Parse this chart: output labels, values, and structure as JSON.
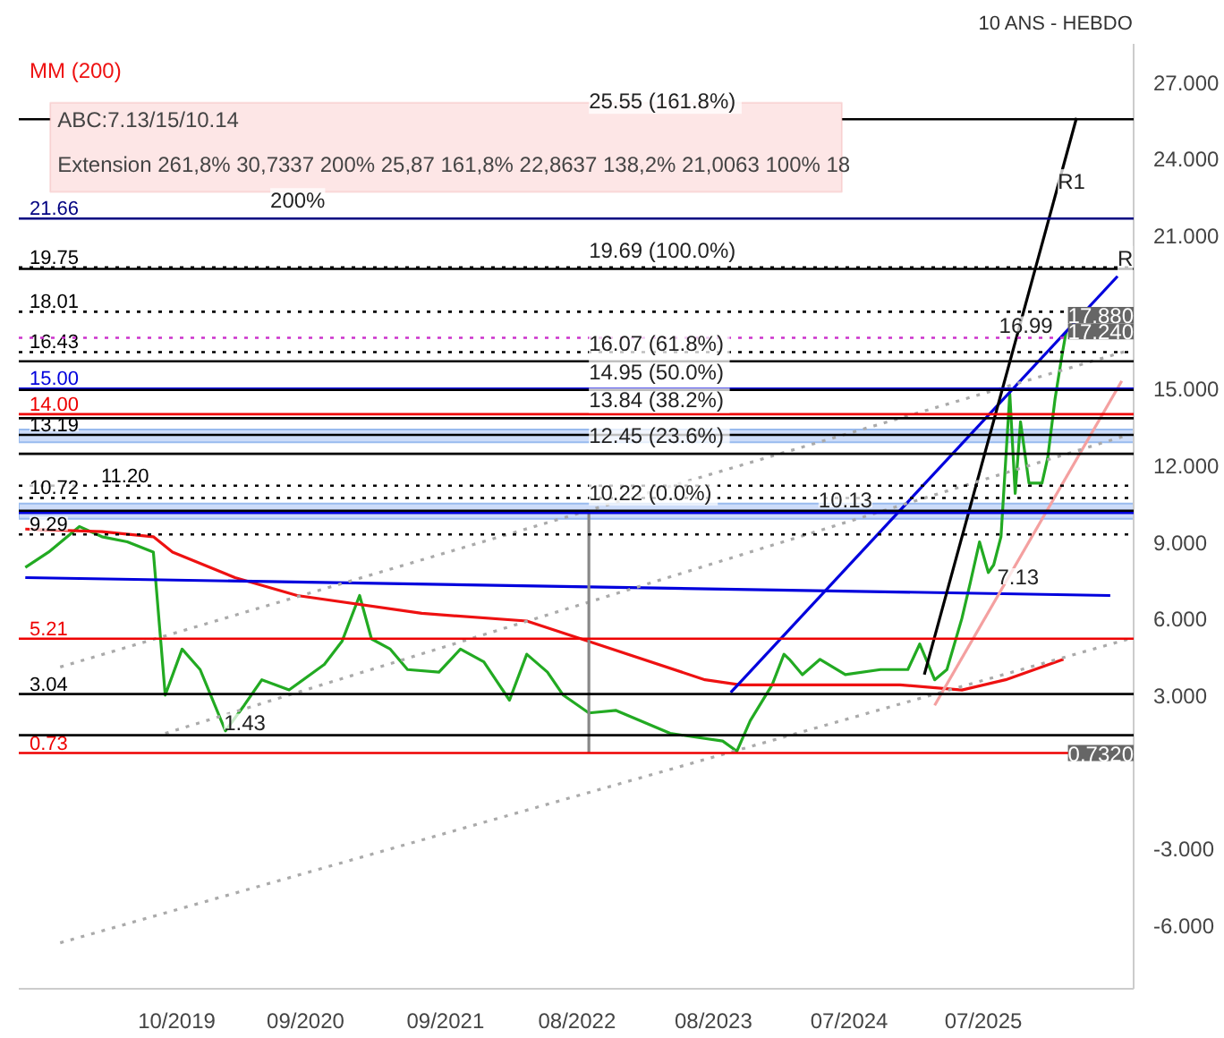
{
  "chart_data": {
    "type": "line",
    "title": "10 ANS - HEBDO",
    "x": [
      "2018-09-01",
      "2018-11-01",
      "2019-01-20",
      "2019-03-20",
      "2019-05-25",
      "2019-08-01",
      "2019-09-01",
      "2019-10-15",
      "2019-12-01",
      "2020-02-05",
      "2020-03-25",
      "2020-05-10",
      "2020-07-20",
      "2020-10-20",
      "2020-12-05",
      "2021-01-20",
      "2021-02-20",
      "2021-04-10",
      "2021-05-25",
      "2021-08-15",
      "2021-10-10",
      "2021-12-10",
      "2022-02-15",
      "2022-04-01",
      "2022-05-25",
      "2022-07-05",
      "2022-09-10",
      "2022-11-20",
      "2023-04-10",
      "2023-08-25",
      "2023-10-01",
      "2023-11-05",
      "2024-01-01",
      "2024-02-01",
      "2024-02-15",
      "2024-03-20",
      "2024-05-05",
      "2024-07-10",
      "2024-10-10",
      "2024-12-20",
      "2025-01-20",
      "2025-02-28",
      "2025-04-01",
      "2025-05-10",
      "2025-06-01",
      "2025-06-25",
      "2025-07-18",
      "2025-08-01",
      "2025-08-20",
      "2025-09-12",
      "2025-09-26",
      "2025-10-10",
      "2025-11-01",
      "2025-12-05",
      "2025-12-20",
      "2026-01-08",
      "2026-01-25",
      "2026-02-06"
    ],
    "series": [
      {
        "color": "#22aa22",
        "values": [
          8.0,
          8.6,
          9.6,
          9.2,
          9.0,
          8.6,
          3.0,
          4.8,
          4.0,
          1.6,
          2.6,
          3.6,
          3.2,
          4.2,
          5.1,
          6.9,
          5.2,
          4.8,
          4.0,
          3.9,
          4.8,
          4.3,
          2.8,
          4.6,
          3.9,
          3.0,
          2.3,
          2.4,
          1.5,
          1.2,
          0.8,
          2.0,
          3.4,
          4.6,
          4.4,
          3.8,
          4.4,
          3.8,
          4.0,
          4.0,
          5.0,
          3.6,
          4.0,
          6.0,
          7.4,
          9.0,
          7.8,
          8.1,
          9.2,
          14.8,
          10.9,
          13.7,
          11.3,
          11.3,
          12.3,
          14.6,
          16.2,
          17.24
        ]
      },
      {
        "name": "MM (200)",
        "color": "#ee1111",
        "x": [
          "2018-09-01",
          "2019-03-20",
          "2019-08-01",
          "2019-09-20",
          "2020-03-01",
          "2020-08-10",
          "2021-07-01",
          "2022-04-01",
          "2022-10-01",
          "2023-07-10",
          "2023-10-10",
          "2024-11-30",
          "2025-05-10",
          "2025-09-01",
          "2026-01-30"
        ],
        "values": [
          9.5,
          9.4,
          9.2,
          8.6,
          7.6,
          6.9,
          6.2,
          5.9,
          5.0,
          3.6,
          3.4,
          3.4,
          3.2,
          3.6,
          4.4
        ]
      },
      {
        "color": "#0000dd",
        "x": [
          "2018-09-01",
          "2026-06-01"
        ],
        "values": [
          7.6,
          6.9
        ]
      },
      {
        "color": "#0000dd",
        "x": [
          "2023-09-15",
          "2026-06-20"
        ],
        "values": [
          3.1,
          19.4
        ]
      },
      {
        "color": "#000000",
        "x": [
          "2025-02-01",
          "2026-03-05"
        ],
        "values": [
          3.8,
          25.6
        ]
      },
      {
        "color": "#f4a0a0",
        "x": [
          "2025-02-28",
          "2026-07-01"
        ],
        "values": [
          2.6,
          15.3
        ]
      },
      {
        "color": "#aaaaaa",
        "line_style": "dotted",
        "x": [
          "2018-12-01",
          "2026-07-20"
        ],
        "values": [
          -6.7,
          5.2
        ]
      },
      {
        "color": "#aaaaaa",
        "line_style": "dotted",
        "x": [
          "2018-12-01",
          "2026-07-20"
        ],
        "values": [
          4.1,
          16.5
        ]
      },
      {
        "color": "#aaaaaa",
        "line_style": "dotted",
        "x": [
          "2019-09-01",
          "2026-07-20"
        ],
        "values": [
          1.5,
          13.2
        ]
      },
      {
        "color": "#888888",
        "x": [
          "2022-09-10",
          "2022-09-10"
        ],
        "values": [
          0.73,
          10.22
        ]
      }
    ],
    "xlim": [
      "2018-08-15",
      "2026-08-01"
    ],
    "ylim": [
      -8.5,
      28.5
    ],
    "xticks": [
      {
        "value": "2019-10-01",
        "label": "10/2019"
      },
      {
        "value": "2020-09-01",
        "label": "09/2020"
      },
      {
        "value": "2021-09-01",
        "label": "09/2021"
      },
      {
        "value": "2022-08-10",
        "label": "08/2022"
      },
      {
        "value": "2023-08-01",
        "label": "08/2023"
      },
      {
        "value": "2024-07-20",
        "label": "07/2024"
      },
      {
        "value": "2025-07-05",
        "label": "07/2025"
      }
    ],
    "yticks": [
      {
        "value": -6,
        "label": "-6.000"
      },
      {
        "value": -3,
        "label": "-3.000"
      },
      {
        "value": 3,
        "label": "3.000"
      },
      {
        "value": 6,
        "label": "6.000"
      },
      {
        "value": 9,
        "label": "9.000"
      },
      {
        "value": 12,
        "label": "12.000"
      },
      {
        "value": 15,
        "label": "15.000"
      },
      {
        "value": 21,
        "label": "21.000"
      },
      {
        "value": 24,
        "label": "24.000"
      },
      {
        "value": 27,
        "label": "27.000"
      }
    ],
    "ref_lines": [
      {
        "axis": "y",
        "value": 21.66,
        "label": "21.66",
        "color": "#000080"
      },
      {
        "axis": "y",
        "value": 19.75,
        "label": "19.75",
        "color": "#000000",
        "line_style": "dotted"
      },
      {
        "axis": "y",
        "value": 18.01,
        "label": "18.01",
        "color": "#000000",
        "line_style": "dotted"
      },
      {
        "axis": "y",
        "value": 16.43,
        "label": "16.43",
        "color": "#000000",
        "line_style": "dotted"
      },
      {
        "axis": "y",
        "value": 15.0,
        "label": "15.00",
        "color": "#0000dd"
      },
      {
        "axis": "y",
        "value": 14.0,
        "label": "14.00",
        "color": "#ee0000"
      },
      {
        "axis": "y",
        "value": 13.19,
        "label": "13.19",
        "color": "#000000"
      },
      {
        "axis": "y",
        "value": 11.2,
        "label": "11.20",
        "color": "#000000",
        "line_style": "dotted"
      },
      {
        "axis": "y",
        "value": 10.72,
        "label": "10.72",
        "color": "#000000",
        "line_style": "dotted"
      },
      {
        "axis": "y",
        "value": 9.29,
        "label": "9.29",
        "color": "#000000",
        "line_style": "dotted"
      },
      {
        "axis": "y",
        "value": 5.21,
        "label": "5.21",
        "color": "#ee0000"
      },
      {
        "axis": "y",
        "value": 3.04,
        "label": "3.04",
        "color": "#000000"
      },
      {
        "axis": "y",
        "value": 0.73,
        "label": "0.73",
        "color": "#ee0000"
      },
      {
        "axis": "y",
        "value": 25.55,
        "color": "#000000"
      },
      {
        "axis": "y",
        "value": 19.69,
        "color": "#000000"
      },
      {
        "axis": "y",
        "value": 16.07,
        "color": "#000000"
      },
      {
        "axis": "y",
        "value": 14.95,
        "color": "#000000"
      },
      {
        "axis": "y",
        "value": 13.84,
        "color": "#000000"
      },
      {
        "axis": "y",
        "value": 12.45,
        "color": "#000000"
      },
      {
        "axis": "y",
        "value": 10.22,
        "color": "#000000"
      },
      {
        "axis": "y",
        "value": 10.13,
        "color": "#0000dd"
      },
      {
        "axis": "y",
        "value": 1.43,
        "color": "#000000"
      },
      {
        "axis": "y",
        "value": 16.99,
        "color": "#cc33cc",
        "line_style": "dotted"
      }
    ],
    "bands": [
      {
        "axis": "y",
        "from": 9.9,
        "to": 10.5,
        "color": "#c8d8f8"
      },
      {
        "axis": "y",
        "from": 12.9,
        "to": 13.4,
        "color": "#c8d8f8"
      }
    ],
    "annotations": [
      "ABC:7.13/15/10.14",
      "Extension 261,8% 30,7337 200% 25,87 161,8% 22,8637 138,2% 21,0063 100% 18",
      {
        "text": "25.55  (161.8%)",
        "x": "2022-09-10",
        "y": 25.55
      },
      {
        "text": "200%",
        "x": "2020-06-01",
        "y": 21.66
      },
      {
        "text": "19.69  (100.0%)",
        "x": "2022-09-10",
        "y": 19.69
      },
      {
        "text": "16.07  (61.8%)",
        "x": "2022-09-10",
        "y": 16.07
      },
      {
        "text": "14.95  (50.0%)",
        "x": "2022-09-10",
        "y": 14.95
      },
      {
        "text": "13.84  (38.2%)",
        "x": "2022-09-10",
        "y": 13.84
      },
      {
        "text": "12.45  (23.6%)",
        "x": "2022-09-10",
        "y": 12.45
      },
      {
        "text": "10.22  (0.0%)",
        "x": "2022-09-10",
        "y": 10.22
      },
      {
        "text": "10.13",
        "x": "2024-05-01",
        "y": 10.13
      },
      {
        "text": "16.99",
        "x": "2025-08-15",
        "y": 16.99
      },
      {
        "text": "1.43",
        "x": "2020-02-01",
        "y": 1.43
      },
      {
        "text": "7.13",
        "x": "2025-08-10",
        "y": 7.13
      },
      {
        "text": "R1",
        "x": "2026-01-15",
        "y": 22.4
      },
      {
        "text": "R",
        "x": "2026-06-20",
        "y": 19.4
      },
      {
        "text": "17.880",
        "x": "2026-08-01",
        "y": 17.88
      },
      {
        "text": "17.240",
        "x": "2026-08-01",
        "y": 17.24
      },
      {
        "text": "0.7320",
        "x": "2026-08-01",
        "y": 0.73
      }
    ],
    "legend": "top left",
    "grid": false,
    "line_style": "solid",
    "marker": "none"
  }
}
